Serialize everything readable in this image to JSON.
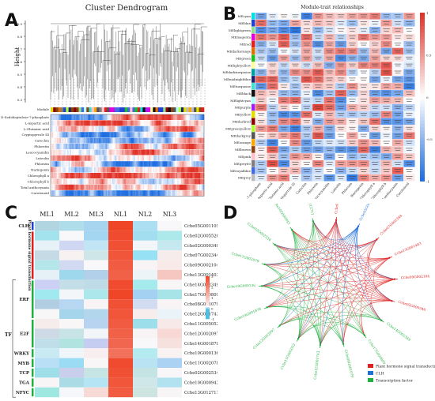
{
  "figure": {
    "panel_labels": [
      "A",
      "B",
      "C",
      "D"
    ]
  },
  "panel_a": {
    "title": "Cluster Dendrogram",
    "ylabel": "Height",
    "yticks": [
      "0.9",
      "0.8",
      "0.7",
      "0.6",
      "0.5",
      "0.4",
      "0.3"
    ],
    "module_label": "Module",
    "traits": [
      "D-Sedoheptulose-7-phosphate",
      "L-Aspartic acid",
      "L-Glutamic acid",
      "Cryptopyrrole III",
      "Catechin",
      "Phloretin",
      "Leucocyanidin",
      "Luteolin",
      "Phlorizin",
      "Naringenin",
      "Chlorophyll a",
      "Chlorophyll b",
      "Total anthocyanin",
      "Carotenoid"
    ]
  },
  "panel_b": {
    "title": "Module-trait relationships",
    "modules": [
      "MEcyan",
      "MEblue",
      "MElightgreen",
      "MEmagenta",
      "MEred",
      "MEdarkorange",
      "MEgreen",
      "MElightyellow",
      "MEdarkturquoise",
      "MEmidnightblue",
      "MEturquoise",
      "MEblack",
      "MElightcyan",
      "MEpurple",
      "MEyellow",
      "MEdarkred",
      "MEgreenyellow",
      "MEdarkgrey",
      "MEorange",
      "MEbrown",
      "MEpink",
      "MEgrey60",
      "MEroyalblue",
      "MEgrey"
    ],
    "module_colors": [
      "#00e0e0",
      "#1f3fd6",
      "#8ee08e",
      "#e000e0",
      "#e02020",
      "#e07000",
      "#20c020",
      "#ffffa0",
      "#00a0a0",
      "#202070",
      "#40e0d0",
      "#111111",
      "#b0ffff",
      "#a020f0",
      "#e0e000",
      "#8b0000",
      "#adff2f",
      "#555555",
      "#ffa500",
      "#8b4513",
      "#ffc0cb",
      "#808080",
      "#4169e1",
      "#bbbbbb"
    ],
    "traits": [
      "D-Sedoheptulose-7-phosphate",
      "L-Aspartic acid",
      "L-Glutamic acid",
      "Cryptopyrrole III",
      "Catechin",
      "Phloretin",
      "Leucocyanidin",
      "Luteolin",
      "Phlorizin",
      "Naringenin",
      "Chlorophyll a",
      "Chlorophyll b",
      "Total anthocyanin",
      "Carotenoid"
    ],
    "scale_ticks": [
      "1",
      "0.5",
      "0",
      "-0.5",
      "-1"
    ]
  },
  "panel_c": {
    "columns": [
      "ML1",
      "ML2",
      "ML3",
      "NL1",
      "NL2",
      "NL3"
    ],
    "genes": [
      "Cche05G001105",
      "Cche02G005526",
      "Cche02G000340",
      "Cche07G002344",
      "Cche09G002104",
      "Cche13G001403",
      "Cche14G002349",
      "Cche17G000809",
      "Cche08G001079",
      "Cche12G001743",
      "Cche11G005052",
      "Cche12G002097",
      "Cche14G001878",
      "Cche10G000136",
      "Cche11G002078",
      "Cche02G002534",
      "Cche10G000943",
      "Cche13G012711"
    ],
    "values": [
      [
        0.2,
        0.1,
        0.2,
        3.6,
        0.1,
        0.3
      ],
      [
        0.1,
        0.3,
        0.2,
        3.5,
        0.2,
        0.2
      ],
      [
        0.3,
        0.2,
        0.1,
        3.4,
        0.3,
        0.1
      ],
      [
        0.2,
        0.4,
        0.2,
        3.3,
        0.1,
        0.5
      ],
      [
        0.1,
        0.2,
        0.3,
        3.2,
        0.4,
        0.6
      ],
      [
        0.3,
        0.1,
        0.2,
        3.1,
        0.3,
        1.2
      ],
      [
        0.2,
        0.2,
        0.1,
        3.5,
        0.2,
        0.3
      ],
      [
        0.1,
        0.3,
        0.2,
        3.6,
        0.1,
        0.2
      ],
      [
        0.2,
        0.1,
        0.4,
        3.4,
        0.2,
        0.4
      ],
      [
        0.3,
        0.2,
        0.1,
        3.3,
        0.5,
        0.3
      ],
      [
        0.5,
        0.3,
        0.2,
        3.2,
        0.2,
        0.6
      ],
      [
        0.2,
        0.0,
        0.3,
        3.1,
        0.4,
        0.9
      ],
      [
        0.1,
        0.2,
        0.2,
        3.0,
        0.3,
        0.7
      ],
      [
        0.2,
        0.3,
        0.5,
        2.8,
        0.2,
        0.4
      ],
      [
        0.1,
        0.2,
        0.3,
        3.5,
        0.1,
        0.2
      ],
      [
        0.2,
        0.1,
        0.2,
        3.4,
        0.2,
        0.3
      ],
      [
        0.3,
        0.2,
        0.1,
        3.3,
        0.1,
        0.2
      ],
      [
        0.2,
        0.3,
        0.8,
        3.2,
        0.2,
        0.4
      ]
    ],
    "row_groups": [
      {
        "label": "CLH",
        "start": 0,
        "end": 0,
        "color": "#1f3fd6"
      },
      {
        "label": "Plant hormone signal transduction",
        "start": 1,
        "end": 5,
        "color": "#e02020"
      },
      {
        "label": "ERF",
        "start": 6,
        "end": 9,
        "color": "#20b040"
      },
      {
        "label": "E2F",
        "start": 10,
        "end": 12,
        "color": "#20b040"
      },
      {
        "label": "WRKY",
        "start": 13,
        "end": 13,
        "color": "#20b040"
      },
      {
        "label": "MYB",
        "start": 14,
        "end": 14,
        "color": "#20b040"
      },
      {
        "label": "TCP",
        "start": 15,
        "end": 15,
        "color": "#20b040"
      },
      {
        "label": "TGA",
        "start": 16,
        "end": 16,
        "color": "#20b040"
      },
      {
        "label": "NFYC",
        "start": 17,
        "end": 17,
        "color": "#20b040"
      }
    ],
    "tf_label": "TF",
    "scale_ticks": [
      "3",
      "2",
      "1",
      "0",
      "-1"
    ]
  },
  "panel_d": {
    "nodes": [
      {
        "label": "Cche02G005526",
        "type": "red"
      },
      {
        "label": "Cche05G001105",
        "type": "blue"
      },
      {
        "label": "Cche07G002344",
        "type": "red"
      },
      {
        "label": "Cche13G001403",
        "type": "red"
      },
      {
        "label": "Cche09G002104",
        "type": "red"
      },
      {
        "label": "Cche02G000340",
        "type": "red"
      },
      {
        "label": "Cche14G002349",
        "type": "green"
      },
      {
        "label": "Cche17G000809",
        "type": "green"
      },
      {
        "label": "Cche08G001079",
        "type": "green"
      },
      {
        "label": "Cche12G001743",
        "type": "green"
      },
      {
        "label": "Cche11G005052",
        "type": "green"
      },
      {
        "label": "Cche12G002097",
        "type": "green"
      },
      {
        "label": "Cche14G001878",
        "type": "green"
      },
      {
        "label": "Cche10G000136",
        "type": "green"
      },
      {
        "label": "Cche11G002078",
        "type": "green"
      },
      {
        "label": "Cche02G002534",
        "type": "green"
      },
      {
        "label": "Cche10G000943",
        "type": "green"
      },
      {
        "label": "Cche13G012711",
        "type": "green"
      }
    ],
    "legend": [
      {
        "label": "Plant hormone signal transduction",
        "color": "#e02020"
      },
      {
        "label": "CLH",
        "color": "#1f6fd6"
      },
      {
        "label": "Transcription factor",
        "color": "#20b040"
      }
    ]
  }
}
